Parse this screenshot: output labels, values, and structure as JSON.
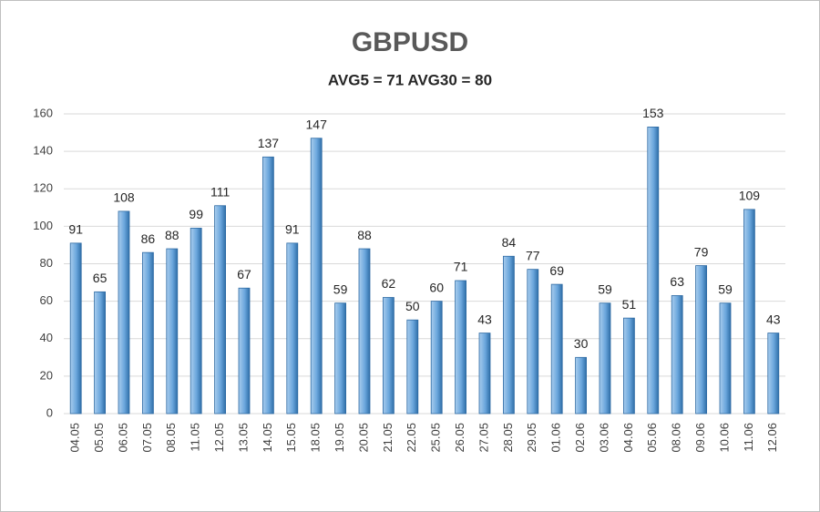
{
  "chart_data": {
    "type": "bar",
    "title": "GBPUSD",
    "subtitle": "AVG5 = 71 AVG30 = 80",
    "categories": [
      "04.05",
      "05.05",
      "06.05",
      "07.05",
      "08.05",
      "11.05",
      "12.05",
      "13.05",
      "14.05",
      "15.05",
      "18.05",
      "19.05",
      "20.05",
      "21.05",
      "22.05",
      "25.05",
      "26.05",
      "27.05",
      "28.05",
      "29.05",
      "01.06",
      "02.06",
      "03.06",
      "04.06",
      "05.06",
      "08.06",
      "09.06",
      "10.06",
      "11.06",
      "12.06"
    ],
    "values": [
      91,
      65,
      108,
      86,
      88,
      99,
      111,
      67,
      137,
      91,
      147,
      59,
      88,
      62,
      50,
      60,
      71,
      43,
      84,
      77,
      69,
      30,
      59,
      51,
      153,
      63,
      79,
      59,
      109,
      43
    ],
    "color": "#5b9bd5",
    "ylim": [
      0,
      160
    ],
    "yticks": [
      0,
      20,
      40,
      60,
      80,
      100,
      120,
      140,
      160
    ],
    "grid": true
  }
}
